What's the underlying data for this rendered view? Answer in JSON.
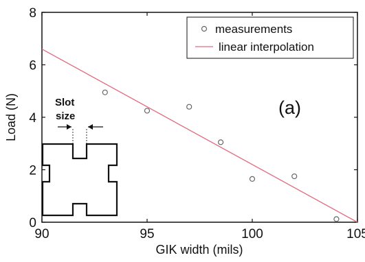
{
  "chart_data": {
    "type": "scatter",
    "title": "",
    "xlabel": "GIK width (mils)",
    "ylabel": "Load (N)",
    "xlim": [
      90,
      105
    ],
    "ylim": [
      0,
      8
    ],
    "xticks": [
      "90",
      "95",
      "100",
      "105"
    ],
    "yticks": [
      "0",
      "2",
      "4",
      "6",
      "8"
    ],
    "grid": false,
    "legend_position": "top-right",
    "panel_label": "(a)",
    "series": [
      {
        "name": "measurements",
        "kind": "scatter",
        "marker": "circle",
        "color": "#666666",
        "x": [
          93.0,
          95.0,
          97.0,
          98.5,
          100.0,
          102.0,
          104.0
        ],
        "y": [
          4.95,
          4.25,
          4.4,
          3.05,
          1.65,
          1.75,
          0.12
        ]
      },
      {
        "name": "linear interpolation",
        "kind": "line",
        "color": "#e06a7f",
        "x": [
          90.0,
          105.0
        ],
        "y": [
          6.6,
          0.0
        ]
      }
    ],
    "inset": {
      "label_line1": "Slot",
      "label_line2": "size"
    }
  }
}
